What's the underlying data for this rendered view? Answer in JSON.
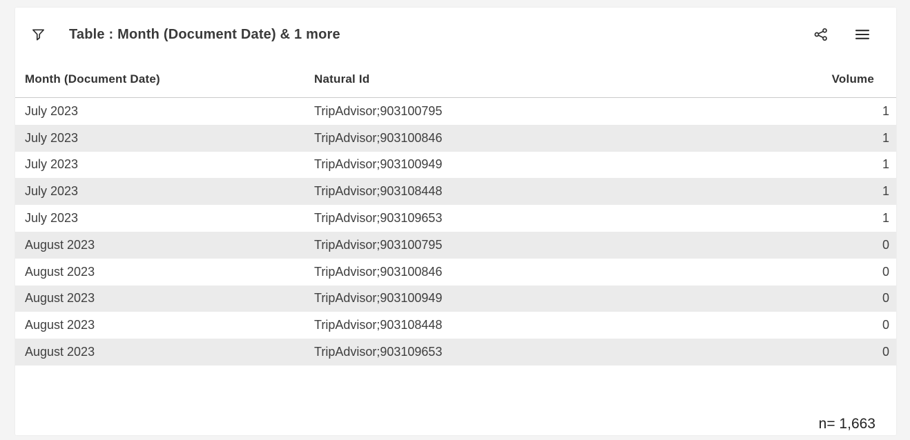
{
  "colors": {
    "page_background": "#f4f4f4",
    "card_background": "#ffffff",
    "row_stripe": "#ebebeb",
    "header_border": "#c9c9c9",
    "title_text": "#3a3a3a",
    "body_text": "#3f3f3f",
    "icon_color": "#2b2b2b"
  },
  "header": {
    "title": "Table : Month (Document Date) & 1 more",
    "icons": [
      {
        "name": "filter-funnel-icon"
      },
      {
        "name": "share-icon"
      },
      {
        "name": "hamburger-menu-icon"
      }
    ]
  },
  "table": {
    "columns": [
      {
        "key": "month",
        "label": "Month (Document Date)",
        "align": "left"
      },
      {
        "key": "natural_id",
        "label": "Natural Id",
        "align": "left"
      },
      {
        "key": "volume",
        "label": "Volume",
        "align": "right"
      }
    ],
    "rows": [
      {
        "month": "July 2023",
        "natural_id": "TripAdvisor;903100795",
        "volume": "1"
      },
      {
        "month": "July 2023",
        "natural_id": "TripAdvisor;903100846",
        "volume": "1"
      },
      {
        "month": "July 2023",
        "natural_id": "TripAdvisor;903100949",
        "volume": "1"
      },
      {
        "month": "July 2023",
        "natural_id": "TripAdvisor;903108448",
        "volume": "1"
      },
      {
        "month": "July 2023",
        "natural_id": "TripAdvisor;903109653",
        "volume": "1"
      },
      {
        "month": "August 2023",
        "natural_id": "TripAdvisor;903100795",
        "volume": "0"
      },
      {
        "month": "August 2023",
        "natural_id": "TripAdvisor;903100846",
        "volume": "0"
      },
      {
        "month": "August 2023",
        "natural_id": "TripAdvisor;903100949",
        "volume": "0"
      },
      {
        "month": "August 2023",
        "natural_id": "TripAdvisor;903108448",
        "volume": "0"
      },
      {
        "month": "August 2023",
        "natural_id": "TripAdvisor;903109653",
        "volume": "0"
      }
    ]
  },
  "footer": {
    "sample_size": "n= 1,663"
  }
}
